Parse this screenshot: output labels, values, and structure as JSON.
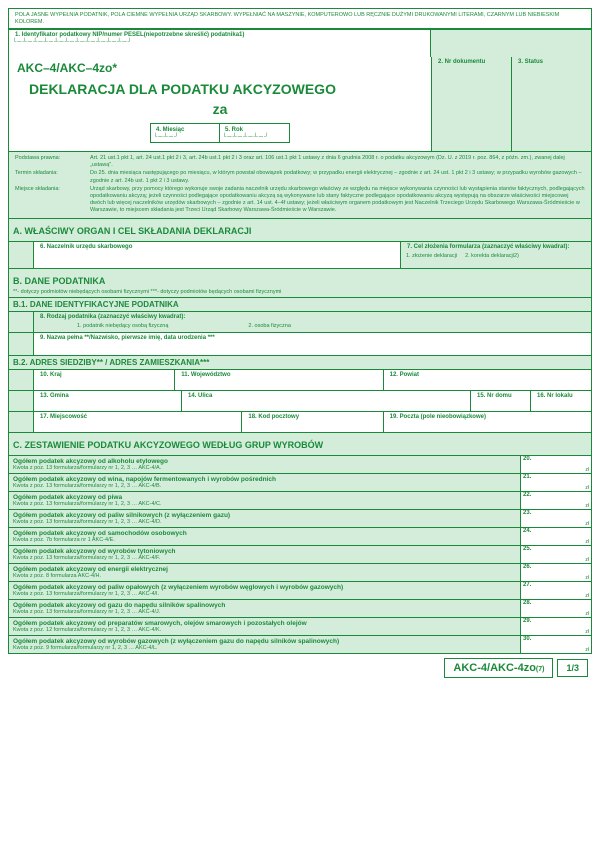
{
  "topNote": "POLA JASNE WYPEŁNIA PODATNIK, POLA CIEMNE WYPEŁNIA URZĄD SKARBOWY. WYPEŁNIAĆ NA MASZYNIE, KOMPUTEROWO LUB RĘCZNIE DUŻYMI DRUKOWANYMI LITERAMI, CZARNYM LUB NIEBIESKIM KOLOREM.",
  "f1": "1. Identyfikator podatkowy NIP/numer PESEL(niepotrzebne skreślić) podatnika1)",
  "f2": "2. Nr dokumentu",
  "f3": "3. Status",
  "code": "AKC–4/AKC–4zo*",
  "title": "DEKLARACJA DLA PODATKU AKCYZOWEGO",
  "za": "za",
  "f4": "4. Miesiąc",
  "f5": "5. Rok",
  "legal": [
    {
      "l": "Podstawa prawna:",
      "r": "Art. 21 ust.1 pkt 1, art. 24 ust.1 pkt 2 i 3, art. 24b ust.1 pkt 2 i 3 oraz art. 106 ust.1 pkt 1 ustawy z dnia 6 grudnia 2008 r. o podatku akcyzowym (Dz. U. z 2019 r. poz. 864, z późn. zm.), zwanej dalej „ustawą\"."
    },
    {
      "l": "Termin składania:",
      "r": "Do 25. dnia miesiąca następującego po miesiącu, w którym powstał obowiązek podatkowy; w przypadku energii elektrycznej – zgodnie z art. 24 ust. 1 pkt 2 i 3 ustawy; w przypadku wyrobów gazowych – zgodnie z art. 24b ust. 1 pkt 2 i 3 ustawy."
    },
    {
      "l": "Miejsce składania:",
      "r": "Urząd skarbowy, przy pomocy którego wykonuje swoje zadania naczelnik urzędu skarbowego właściwy ze względu na miejsce wykonywania czynności lub wystąpienia stanów faktycznych, podlegających opodatkowaniu akcyzą; jeżeli czynności podlegające opodatkowaniu akcyzą są wykonywane lub stany faktyczne podlegające opodatkowaniu akcyzą występują na obszarze właściwości miejscowej dwóch lub więcej naczelników urzędów skarbowych – zgodnie z art. 14 ust. 4–4f ustawy; jeżeli właściwym organem podatkowym jest Naczelnik Trzeciego Urzędu Skarbowego Warszawa-Śródmieście w Warszawie, to miejscem składania jest Trzeci Urząd Skarbowy Warszawa-Śródmieście w Warszawie."
    }
  ],
  "secA": "A. WŁAŚCIWY ORGAN I CEL SKŁADANIA DEKLARACJI",
  "f6": "6. Naczelnik urzędu skarbowego",
  "f7": "7. Cel złożenia formularza (zaznaczyć właściwy kwadrat):",
  "f7a": "1. złożenie deklaracji",
  "f7b": "2. korekta deklaracji2)",
  "secB": "B. DANE PODATNIKA",
  "secBnote": "**- dotyczy podmiotów niebędących osobami fizycznymi     ***- dotyczy podmiotów będących osobami fizycznymi",
  "secB1": "B.1. DANE IDENTYFIKACYJNE PODATNIKA",
  "f8": "8. Rodzaj podatnika (zaznaczyć właściwy kwadrat):",
  "f8a": "1. podatnik niebędący osobą fizyczną",
  "f8b": "2. osoba fizyczna",
  "f9": "9. Nazwa pełna **/Nazwisko, pierwsze imię, data urodzenia ***",
  "secB2": "B.2. ADRES SIEDZIBY** / ADRES ZAMIESZKANIA***",
  "f10": "10. Kraj",
  "f11": "11. Województwo",
  "f12": "12. Powiat",
  "f13": "13. Gmina",
  "f14": "14. Ulica",
  "f15": "15. Nr domu",
  "f16": "16. Nr lokalu",
  "f17": "17. Miejscowość",
  "f18": "18. Kod pocztowy",
  "f19": "19. Poczta (pole nieobowiązkowe)",
  "secC": "C. ZESTAWIENIE PODATKU AKCYZOWEGO WEDŁUG GRUP WYROBÓW",
  "items": [
    {
      "t": "Ogółem podatek akcyzowy od alkoholu etylowego",
      "s": "Kwota z poz. 13 formularza/formularzy nr 1, 2, 3 … AKC-4/A.",
      "n": "20."
    },
    {
      "t": "Ogółem podatek akcyzowy od wina, napojów fermentowanych i wyrobów pośrednich",
      "s": "Kwota z poz. 13 formularza/formularzy nr 1, 2, 3 … AKC-4/B.",
      "n": "21."
    },
    {
      "t": "Ogółem podatek akcyzowy od piwa",
      "s": "Kwota z poz. 13 formularza/formularzy nr 1, 2, 3 … AKC-4/C.",
      "n": "22."
    },
    {
      "t": "Ogółem podatek akcyzowy od paliw silnikowych (z wyłączeniem gazu)",
      "s": "Kwota z poz. 13 formularza/formularzy nr 1, 2, 3 … AKC-4/D.",
      "n": "23."
    },
    {
      "t": "Ogółem podatek akcyzowy od samochodów osobowych",
      "s": "Kwota z poz. 7b formularza nr 1 AKC-4/E.",
      "n": "24."
    },
    {
      "t": "Ogółem podatek akcyzowy od wyrobów tytoniowych",
      "s": "Kwota z poz. 13 formularza/formularzy nr 1, 2, 3 … AKC-4/F.",
      "n": "25."
    },
    {
      "t": "Ogółem podatek akcyzowy od energii elektrycznej",
      "s": "Kwota z poz. 8 formularza AKC-4/H.",
      "n": "26."
    },
    {
      "t": "Ogółem podatek akcyzowy od paliw opałowych (z wyłączeniem wyrobów węglowych i wyrobów gazowych)",
      "s": "Kwota z poz. 13 formularza/formularzy nr 1, 2, 3 … AKC-4/I.",
      "n": "27."
    },
    {
      "t": "Ogółem podatek akcyzowy od gazu do napędu silników spalinowych",
      "s": "Kwota z poz. 13 formularza/formularzy nr 1, 2, 3 … AKC-4/J.",
      "n": "28."
    },
    {
      "t": "Ogółem podatek akcyzowy od preparatów smarowych, olejów smarowych i pozostałych olejów",
      "s": "Kwota z poz. 12 formularza/formularzy nr 1, 2, 3 … AKC-4/K.",
      "n": "29."
    },
    {
      "t": "Ogółem podatek akcyzowy od wyrobów gazowych (z wyłączeniem gazu do napędu silników spalinowych)",
      "s": "Kwota z poz. 9 formularza/formularzy nr 1, 2, 3 … AKC-4/L.",
      "n": "30."
    }
  ],
  "footCode": "AKC-4/AKC-4zo",
  "footSub": "(7)",
  "page": "1/3"
}
